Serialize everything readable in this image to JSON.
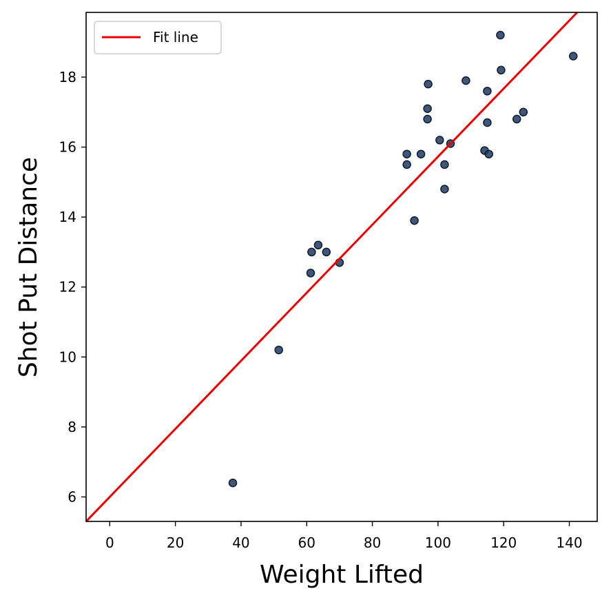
{
  "chart_data": {
    "type": "scatter",
    "title": "",
    "xlabel": "Weight Lifted",
    "ylabel": "Shot Put Distance",
    "xlim": [
      -7.2,
      148.5
    ],
    "ylim": [
      5.3,
      19.85
    ],
    "xticks": [
      0,
      20,
      40,
      60,
      80,
      100,
      120,
      140
    ],
    "yticks": [
      6,
      8,
      10,
      12,
      14,
      16,
      18
    ],
    "grid": false,
    "legend": {
      "placement": "top-left",
      "entries": [
        "Fit line"
      ]
    },
    "series": [
      {
        "kind": "points",
        "color": "#1f3a5f",
        "x": [
          37.5,
          51.5,
          61.2,
          61.5,
          63.5,
          66,
          70,
          90.5,
          90.5,
          92.8,
          94.8,
          96.8,
          96.8,
          97,
          100.5,
          102,
          102,
          103.8,
          108.5,
          114.2,
          115,
          115,
          115.5,
          119,
          119.2,
          124,
          126,
          141.2
        ],
        "y": [
          6.4,
          10.2,
          12.4,
          13.0,
          13.2,
          13.0,
          12.7,
          15.5,
          15.8,
          13.9,
          15.8,
          16.8,
          17.1,
          17.8,
          16.2,
          15.5,
          14.8,
          16.1,
          17.9,
          15.9,
          16.7,
          17.6,
          15.8,
          19.2,
          18.2,
          16.8,
          17.0,
          18.6
        ]
      },
      {
        "kind": "line",
        "name": "Fit line",
        "color": "#ee0000",
        "x": [
          -7.2,
          142.4
        ],
        "y": [
          5.3,
          19.85
        ]
      }
    ]
  }
}
